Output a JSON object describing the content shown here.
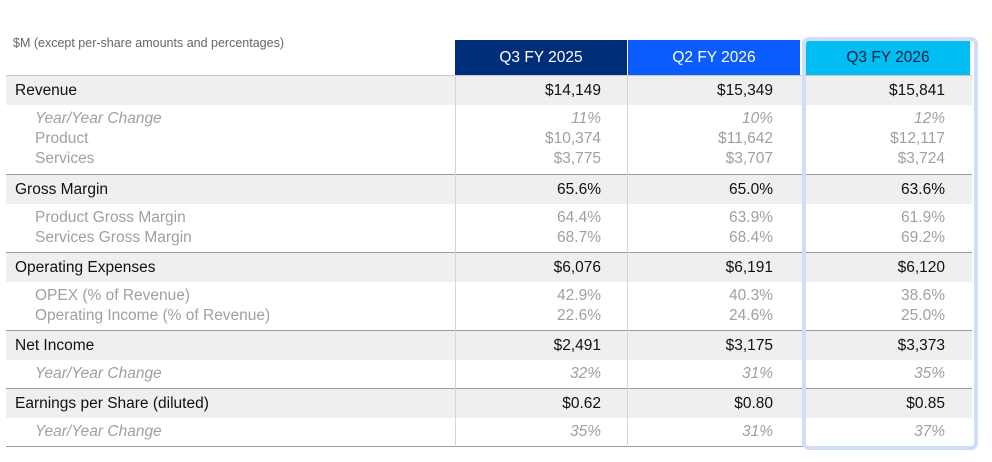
{
  "note": "$M (except per-share amounts and percentages)",
  "headers": [
    "Q3 FY 2025",
    "Q2 FY 2026",
    "Q3 FY 2026"
  ],
  "colors": {
    "q3fy25": "#002e7a",
    "q2fy26": "#0a5cff",
    "q3fy26": "#00bdf2",
    "highlight_border": "#cfddf6"
  },
  "sections": [
    {
      "label": "Revenue",
      "values": [
        "$14,149",
        "$15,349",
        "$15,841"
      ],
      "sub": [
        {
          "label": "Year/Year Change",
          "values": [
            "11%",
            "10%",
            "12%"
          ],
          "italic": true
        },
        {
          "label": "Product",
          "values": [
            "$10,374",
            "$11,642",
            "$12,117"
          ]
        },
        {
          "label": "Services",
          "values": [
            "$3,775",
            "$3,707",
            "$3,724"
          ]
        }
      ]
    },
    {
      "label": "Gross Margin",
      "values": [
        "65.6%",
        "65.0%",
        "63.6%"
      ],
      "sub": [
        {
          "label": "Product Gross Margin",
          "values": [
            "64.4%",
            "63.9%",
            "61.9%"
          ]
        },
        {
          "label": "Services Gross Margin",
          "values": [
            "68.7%",
            "68.4%",
            "69.2%"
          ]
        }
      ]
    },
    {
      "label": "Operating Expenses",
      "values": [
        "$6,076",
        "$6,191",
        "$6,120"
      ],
      "sub": [
        {
          "label": "OPEX (% of Revenue)",
          "values": [
            "42.9%",
            "40.3%",
            "38.6%"
          ]
        },
        {
          "label": "Operating Income (% of Revenue)",
          "values": [
            "22.6%",
            "24.6%",
            "25.0%"
          ]
        }
      ]
    },
    {
      "label": "Net Income",
      "values": [
        "$2,491",
        "$3,175",
        "$3,373"
      ],
      "sub": [
        {
          "label": "Year/Year Change",
          "values": [
            "32%",
            "31%",
            "35%"
          ],
          "italic": true
        }
      ]
    },
    {
      "label": "Earnings per Share (diluted)",
      "values": [
        "$0.62",
        "$0.80",
        "$0.85"
      ],
      "sub": [
        {
          "label": "Year/Year Change",
          "values": [
            "35%",
            "31%",
            "37%"
          ],
          "italic": true
        }
      ]
    }
  ]
}
